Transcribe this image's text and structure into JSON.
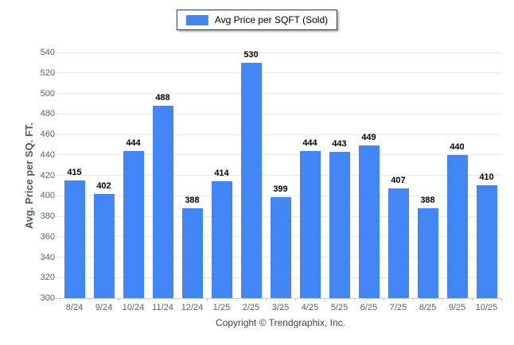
{
  "legend": {
    "label": "Avg Price per SQFT (Sold)",
    "swatch_color": "#4285f4"
  },
  "footer": {
    "copyright": "Copyright © Trendgraphix, Inc."
  },
  "chart_data": {
    "type": "bar",
    "title": "",
    "xlabel": "",
    "ylabel": "Avg. Price per SQ. FT.",
    "categories": [
      "8/24",
      "9/24",
      "10/24",
      "11/24",
      "12/24",
      "1/25",
      "2/25",
      "3/25",
      "4/25",
      "5/25",
      "6/25",
      "7/25",
      "8/25",
      "9/25",
      "10/25"
    ],
    "series": [
      {
        "name": "Avg Price per SQFT (Sold)",
        "values": [
          415,
          402,
          444,
          488,
          388,
          414,
          530,
          399,
          444,
          443,
          449,
          407,
          388,
          440,
          410
        ]
      }
    ],
    "ylim": [
      300,
      540
    ],
    "ytick_step": 20,
    "grid": "horizontal",
    "legend_position": "top-center",
    "value_labels": true
  },
  "colors": {
    "bar": "#4285f4",
    "gridline": "#eaeaea",
    "axis_line": "#c9ced3",
    "tick_label": "#55626e",
    "value_label": "#000000",
    "legend_border": "#1d3c63"
  }
}
